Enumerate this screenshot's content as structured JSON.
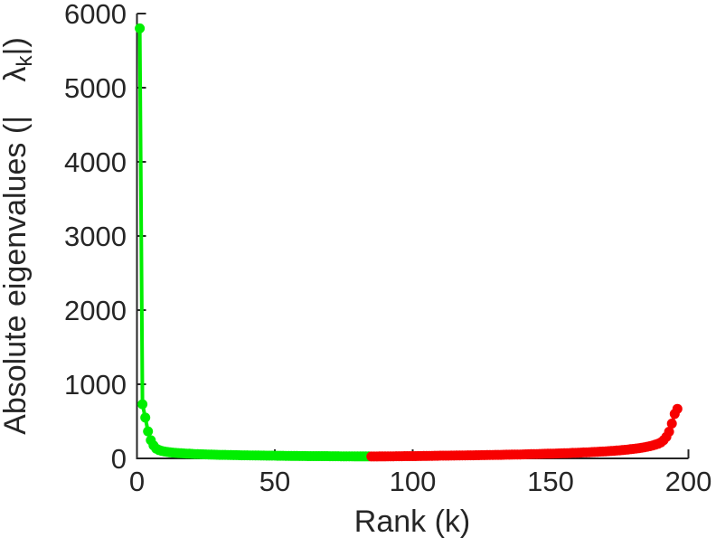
{
  "figure": {
    "background": "#ffffff",
    "axis_color": "#262626",
    "text_color": "#262626"
  },
  "chart_data": {
    "type": "scatter",
    "title": "",
    "xlabel": "Rank (k)",
    "ylabel": "Absolute eigenvalues (|λk|)",
    "ylabel_parts": {
      "prefix": "Absolute eigenvalues (|",
      "symbol": "λ",
      "subscript": "k",
      "suffix": "|)"
    },
    "xlim": [
      0,
      200
    ],
    "ylim": [
      0,
      6000
    ],
    "x_ticks": [
      0,
      50,
      100,
      150,
      200
    ],
    "y_ticks": [
      0,
      1000,
      2000,
      3000,
      4000,
      5000,
      6000
    ],
    "grid": false,
    "legend": null,
    "marker": "filled-circle",
    "series": [
      {
        "name": "positive-eigenvalues",
        "color": "#00ee00",
        "x": [
          1,
          2,
          3,
          4,
          5,
          6,
          7,
          8,
          9,
          10,
          11,
          12,
          13,
          14,
          15,
          16,
          17,
          18,
          19,
          20,
          21,
          22,
          23,
          24,
          25,
          26,
          27,
          28,
          29,
          30,
          31,
          32,
          33,
          34,
          35,
          36,
          37,
          38,
          39,
          40,
          41,
          42,
          43,
          44,
          45,
          46,
          47,
          48,
          49,
          50,
          51,
          52,
          53,
          54,
          55,
          56,
          57,
          58,
          59,
          60,
          61,
          62,
          63,
          64,
          65,
          66,
          67,
          68,
          69,
          70,
          71,
          72,
          73,
          74,
          75,
          76,
          77,
          78,
          79,
          80,
          81,
          82,
          83,
          84
        ],
        "values": [
          5800,
          730,
          550,
          365,
          245,
          175,
          132,
          112,
          101,
          93,
          87,
          82,
          78,
          75,
          72,
          69,
          67,
          65,
          63,
          61,
          59,
          58,
          56,
          55,
          54,
          52,
          51,
          50,
          49,
          48,
          47,
          47,
          46,
          45,
          44,
          44,
          43,
          42,
          42,
          41,
          40,
          40,
          39,
          39,
          38,
          38,
          37,
          37,
          36,
          36,
          35,
          35,
          35,
          34,
          34,
          33,
          33,
          33,
          32,
          32,
          32,
          31,
          31,
          31,
          31,
          30,
          30,
          30,
          30,
          29,
          29,
          29,
          29,
          28,
          28,
          28,
          28,
          28,
          27,
          27,
          27,
          27,
          27,
          27
        ]
      },
      {
        "name": "negative-eigenvalues",
        "color": "#f70000",
        "x": [
          85,
          86,
          87,
          88,
          89,
          90,
          91,
          92,
          93,
          94,
          95,
          96,
          97,
          98,
          99,
          100,
          101,
          102,
          103,
          104,
          105,
          106,
          107,
          108,
          109,
          110,
          111,
          112,
          113,
          114,
          115,
          116,
          117,
          118,
          119,
          120,
          121,
          122,
          123,
          124,
          125,
          126,
          127,
          128,
          129,
          130,
          131,
          132,
          133,
          134,
          135,
          136,
          137,
          138,
          139,
          140,
          141,
          142,
          143,
          144,
          145,
          146,
          147,
          148,
          149,
          150,
          151,
          152,
          153,
          154,
          155,
          156,
          157,
          158,
          159,
          160,
          161,
          162,
          163,
          164,
          165,
          166,
          167,
          168,
          169,
          170,
          171,
          172,
          173,
          174,
          175,
          176,
          177,
          178,
          179,
          180,
          181,
          182,
          183,
          184,
          185,
          186,
          187,
          188,
          189,
          190,
          191,
          192,
          193,
          194,
          195,
          196
        ],
        "values": [
          26,
          26,
          26,
          27,
          27,
          27,
          28,
          28,
          28,
          29,
          29,
          29,
          30,
          30,
          30,
          31,
          31,
          32,
          32,
          33,
          33,
          34,
          34,
          35,
          35,
          36,
          36,
          37,
          37,
          38,
          38,
          39,
          39,
          40,
          40,
          41,
          41,
          42,
          43,
          43,
          44,
          44,
          45,
          46,
          46,
          47,
          48,
          48,
          49,
          50,
          50,
          51,
          52,
          53,
          53,
          54,
          55,
          56,
          57,
          58,
          59,
          60,
          61,
          62,
          63,
          64,
          65,
          66,
          67,
          68,
          70,
          71,
          72,
          74,
          75,
          77,
          78,
          80,
          81,
          83,
          85,
          87,
          89,
          91,
          93,
          95,
          98,
          100,
          103,
          106,
          109,
          112,
          116,
          120,
          124,
          128,
          133,
          138,
          144,
          150,
          157,
          165,
          174,
          185,
          198,
          215,
          245,
          290,
          360,
          470,
          600,
          668
        ]
      }
    ]
  }
}
